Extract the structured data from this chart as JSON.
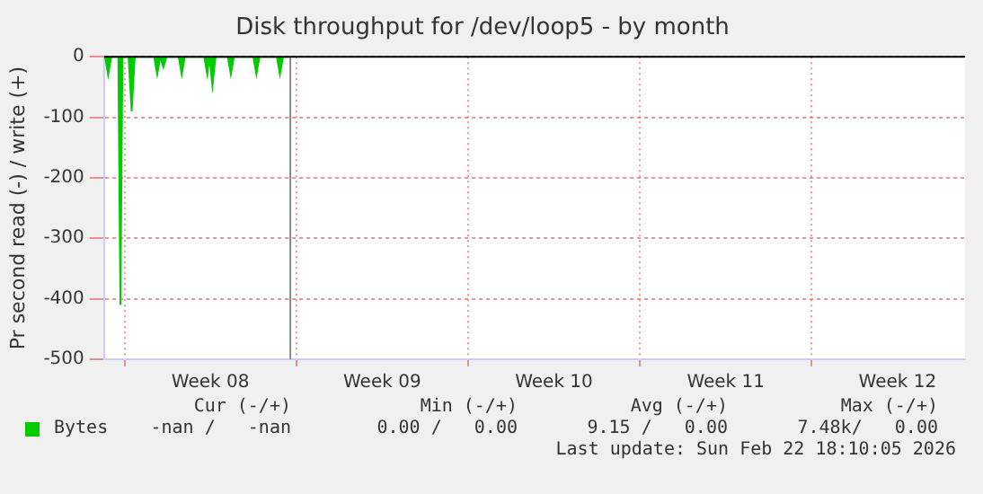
{
  "chart_data": {
    "type": "area",
    "title": "Disk throughput for /dev/loop5 - by month",
    "ylabel": "Pr second read (-) / write (+)",
    "x": [
      "2026-02-15T04:00",
      "2026-02-15T05:00",
      "2026-02-15T08:00",
      "2026-02-15T11:00",
      "2026-02-15T18:00",
      "2026-02-15T20:00",
      "2026-02-15T22:00",
      "2026-02-16T04:00",
      "2026-02-16T07:00",
      "2026-02-16T10:00",
      "2026-02-17T05:00",
      "2026-02-17T08:00",
      "2026-02-17T11:00",
      "2026-02-17T14:00",
      "2026-02-17T17:00",
      "2026-02-18T05:00",
      "2026-02-18T08:00",
      "2026-02-18T11:00",
      "2026-02-19T06:00",
      "2026-02-19T09:00",
      "2026-02-19T11:00",
      "2026-02-19T14:00",
      "2026-02-19T17:00",
      "2026-02-20T05:00",
      "2026-02-20T08:00",
      "2026-02-20T11:00",
      "2026-02-21T06:00",
      "2026-02-21T09:00",
      "2026-02-21T12:00",
      "2026-02-22T05:00",
      "2026-02-22T08:00",
      "2026-02-22T11:00",
      "2026-02-22T18:00"
    ],
    "series": [
      {
        "name": "Bytes",
        "color": "#00cc00",
        "values": [
          0,
          0,
          -30,
          0,
          0,
          -410,
          0,
          0,
          -90,
          0,
          0,
          -29,
          0,
          -17,
          0,
          0,
          -29,
          0,
          0,
          -29,
          0,
          -48,
          0,
          0,
          -29,
          0,
          0,
          -29,
          0,
          0,
          -29,
          0,
          0
        ]
      }
    ],
    "xlim": [
      "2026-02-15T04:00",
      "2026-03-22T06:00"
    ],
    "xticks": [
      {
        "value": "2026-02-16T00:00",
        "label": null
      },
      {
        "value": "2026-02-19T12:00",
        "label": "Week 08"
      },
      {
        "value": "2026-02-23T00:00",
        "label": null
      },
      {
        "value": "2026-02-26T12:00",
        "label": "Week 09"
      },
      {
        "value": "2026-03-02T00:00",
        "label": null
      },
      {
        "value": "2026-03-05T12:00",
        "label": "Week 10"
      },
      {
        "value": "2026-03-09T00:00",
        "label": null
      },
      {
        "value": "2026-03-12T12:00",
        "label": "Week 11"
      },
      {
        "value": "2026-03-16T00:00",
        "label": null
      },
      {
        "value": "2026-03-19T12:00",
        "label": "Week 12"
      }
    ],
    "ylim": [
      -500,
      0
    ],
    "yticks": [
      -500,
      -400,
      -300,
      -200,
      -100,
      0
    ],
    "grid": true,
    "legend": "bottom left",
    "marker": "none",
    "ref_lines": [
      {
        "axis": "x",
        "value": "2026-02-22T18:10",
        "color": "#888888"
      }
    ],
    "annotations": [
      "Cur (-/+)",
      "Min (-/+)",
      "Avg (-/+)",
      "Max (-/+)",
      "-nan /   -nan",
      "0.00 /   0.00",
      "9.15 /   0.00",
      "7.48k/   0.00",
      "Last update: Sun Feb 22 18:10:05 2026"
    ]
  }
}
